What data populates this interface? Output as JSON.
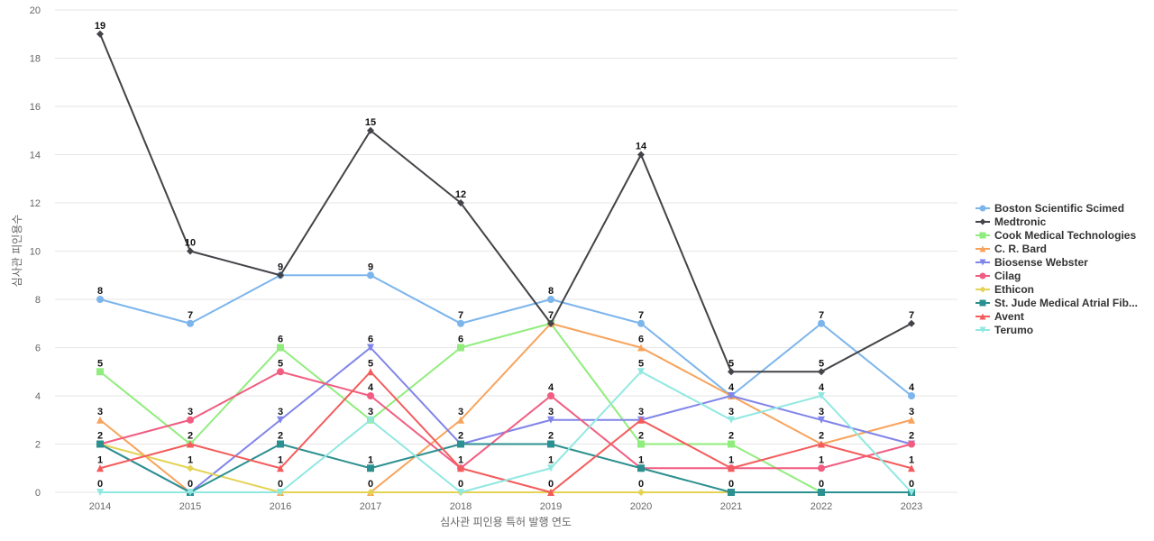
{
  "chart_data": {
    "type": "line",
    "title": "",
    "xlabel": "심사관 피인용 특허 발행 연도",
    "ylabel": "심사관 피인용수",
    "categories": [
      "2014",
      "2015",
      "2016",
      "2017",
      "2018",
      "2019",
      "2020",
      "2021",
      "2022",
      "2023"
    ],
    "ylim": [
      0,
      20
    ],
    "yticks": [
      0,
      2,
      4,
      6,
      8,
      10,
      12,
      14,
      16,
      18,
      20
    ],
    "grid": true,
    "legend_position": "right",
    "series": [
      {
        "name": "Boston Scientific Scimed",
        "color": "#7cb5ec",
        "marker": "circle",
        "values": [
          8,
          7,
          9,
          9,
          7,
          8,
          7,
          4,
          7,
          4
        ]
      },
      {
        "name": "Medtronic",
        "color": "#434348",
        "marker": "diamond",
        "values": [
          19,
          10,
          9,
          15,
          12,
          7,
          14,
          5,
          5,
          7
        ]
      },
      {
        "name": "Cook Medical Technologies",
        "color": "#90ed7d",
        "marker": "square",
        "values": [
          5,
          2,
          6,
          3,
          6,
          7,
          2,
          2,
          0,
          0
        ]
      },
      {
        "name": "C. R. Bard",
        "color": "#f7a35c",
        "marker": "triangle",
        "values": [
          3,
          0,
          0,
          0,
          3,
          7,
          6,
          4,
          2,
          3
        ]
      },
      {
        "name": "Biosense Webster",
        "color": "#8085e9",
        "marker": "triangle-down",
        "values": [
          2,
          0,
          3,
          6,
          2,
          3,
          3,
          4,
          3,
          2
        ]
      },
      {
        "name": "Cilag",
        "color": "#f15c80",
        "marker": "circle",
        "values": [
          2,
          3,
          5,
          4,
          1,
          4,
          1,
          1,
          1,
          2
        ]
      },
      {
        "name": "Ethicon",
        "color": "#e4d354",
        "marker": "diamond",
        "values": [
          2,
          1,
          0,
          0,
          0,
          0,
          0,
          0,
          0,
          0
        ]
      },
      {
        "name": "St. Jude Medical Atrial Fib...",
        "color": "#2b908f",
        "marker": "square",
        "values": [
          2,
          0,
          2,
          1,
          2,
          2,
          1,
          0,
          0,
          0
        ]
      },
      {
        "name": "Avent",
        "color": "#f45b5b",
        "marker": "triangle",
        "values": [
          1,
          2,
          1,
          5,
          1,
          0,
          3,
          1,
          2,
          1
        ]
      },
      {
        "name": "Terumo",
        "color": "#91e8e1",
        "marker": "triangle-down",
        "values": [
          0,
          0,
          0,
          3,
          0,
          1,
          5,
          3,
          4,
          0
        ]
      }
    ],
    "data_labels": [
      {
        "category": "2014",
        "values": [
          "19",
          "8",
          "5",
          "3",
          "2",
          "1",
          "0"
        ]
      },
      {
        "category": "2015",
        "values": [
          "10",
          "7",
          "3",
          "2",
          "1",
          "0"
        ]
      },
      {
        "category": "2016",
        "values": [
          "9",
          "6",
          "5",
          "3",
          "2",
          "1",
          "0"
        ]
      },
      {
        "category": "2017",
        "values": [
          "15",
          "9",
          "6",
          "5",
          "4",
          "3",
          "1",
          "0"
        ]
      },
      {
        "category": "2018",
        "values": [
          "12",
          "7",
          "6",
          "3",
          "2",
          "1",
          "0"
        ]
      },
      {
        "category": "2019",
        "values": [
          "8",
          "7",
          "4",
          "3",
          "2",
          "1",
          "0"
        ]
      },
      {
        "category": "2020",
        "values": [
          "14",
          "7",
          "6",
          "5",
          "3",
          "2",
          "1",
          "0"
        ]
      },
      {
        "category": "2021",
        "values": [
          "5",
          "4",
          "3",
          "2",
          "1",
          "0"
        ]
      },
      {
        "category": "2022",
        "values": [
          "7",
          "5",
          "4",
          "3",
          "2",
          "1",
          "0"
        ]
      },
      {
        "category": "2023",
        "values": [
          "7",
          "4",
          "3",
          "2",
          "1",
          "0"
        ]
      }
    ]
  }
}
